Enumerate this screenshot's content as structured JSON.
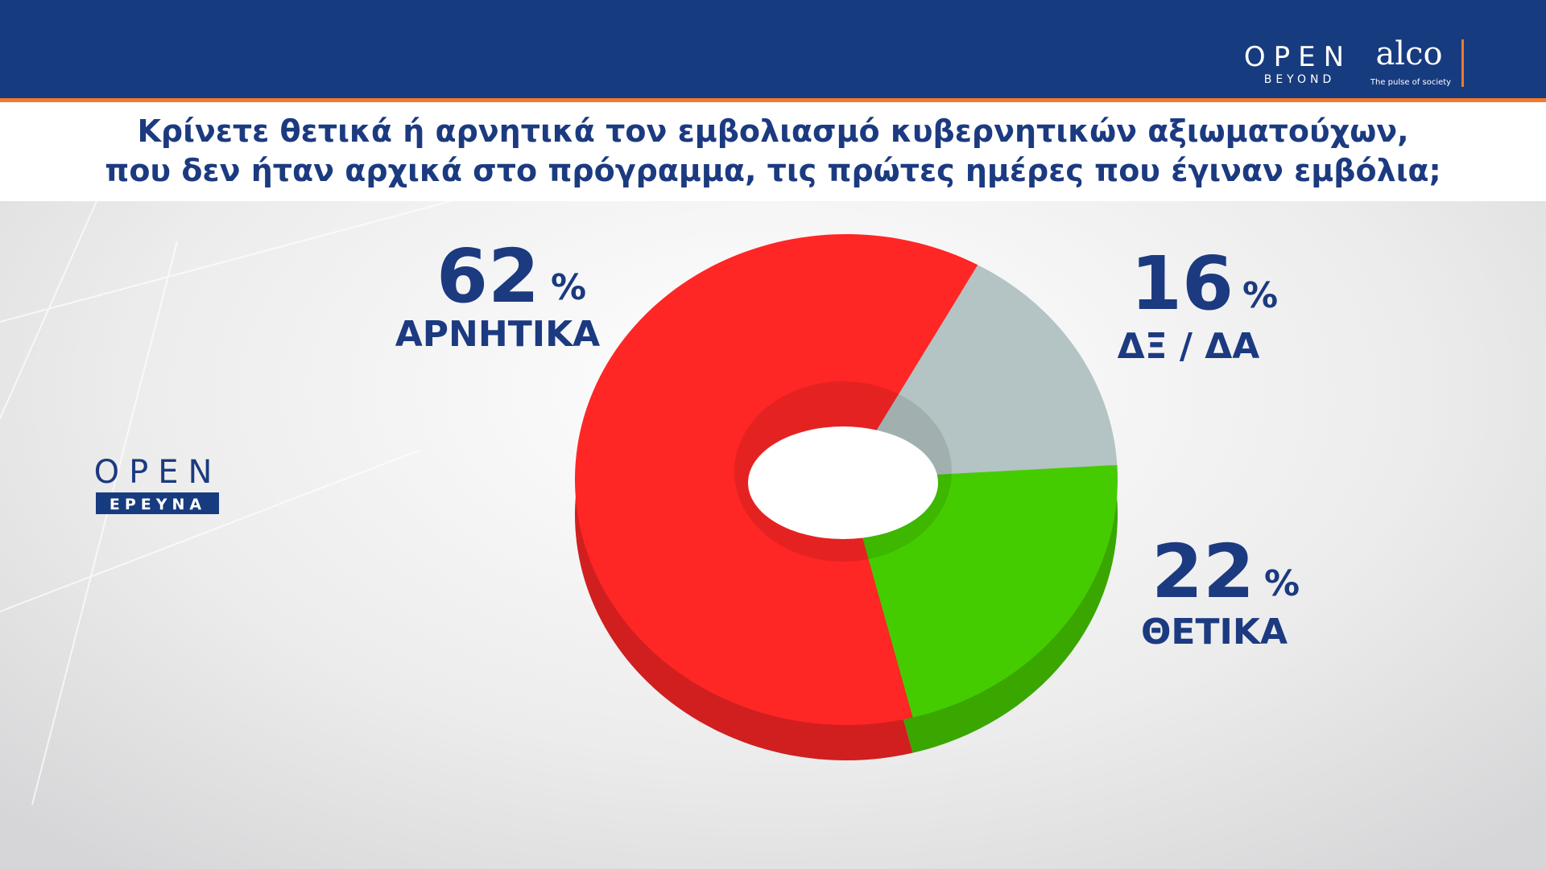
{
  "header": {
    "brand": "OPEN",
    "brand_sub": "BEYOND",
    "partner": "alco",
    "partner_tagline": "The pulse of society"
  },
  "side_logo": {
    "brand": "OPEN",
    "label": "ΕΡΕΥΝΑ"
  },
  "chart_data": {
    "type": "pie",
    "title": [
      "Κρίνετε θετικά ή αρνητικά τον εμβολιασμό κυβερνητικών αξιωματούχων,",
      "που δεν ήταν αρχικά στο πρόγραμμα, τις πρώτες ημέρες που έγιναν εμβόλια;"
    ],
    "categories": [
      "ΑΡΝΗΤΙΚΑ",
      "ΔΞ / ΔΑ",
      "ΘΕΤΙΚΑ"
    ],
    "values": [
      62,
      16,
      22
    ],
    "unit": "%",
    "colors": [
      "#ff2626",
      "#b4c3c3",
      "#45cc00"
    ]
  }
}
